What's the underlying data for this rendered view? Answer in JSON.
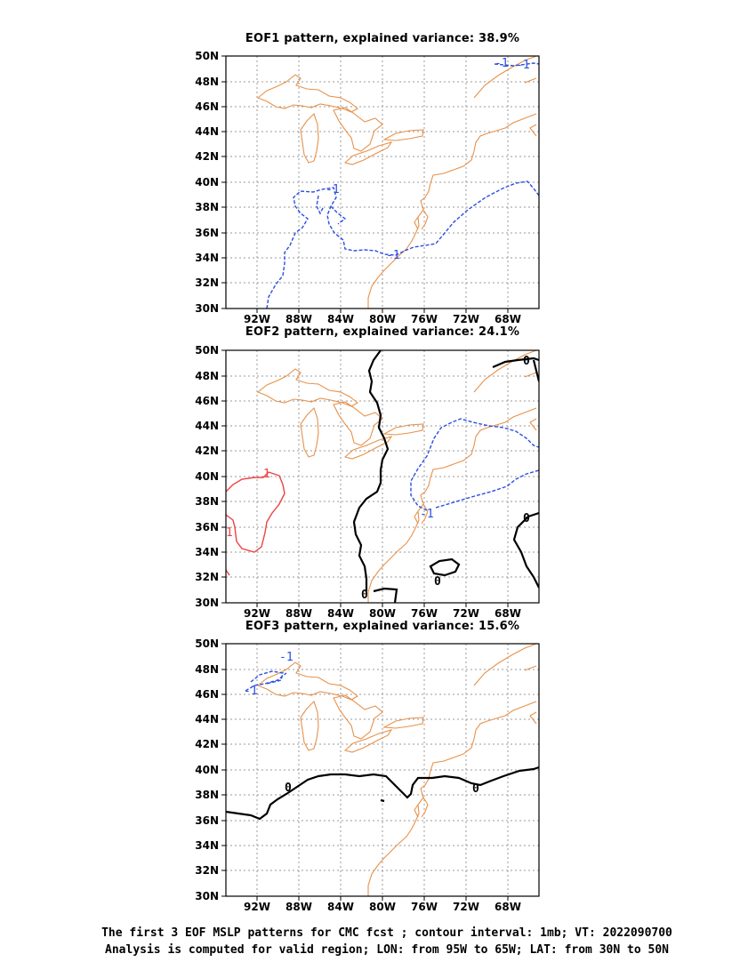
{
  "panels": [
    {
      "title": "EOF1 pattern, explained variance: 38.9%"
    },
    {
      "title": "EOF2 pattern, explained variance: 24.1%"
    },
    {
      "title": "EOF3 pattern, explained variance: 15.6%"
    }
  ],
  "lat_labels": [
    "50N",
    "48N",
    "46N",
    "44N",
    "42N",
    "40N",
    "38N",
    "36N",
    "34N",
    "32N",
    "30N"
  ],
  "lon_labels": [
    "92W",
    "88W",
    "84W",
    "80W",
    "76W",
    "72W",
    "68W"
  ],
  "contour_labels": {
    "neg": "-1",
    "pos": "1",
    "zero": "0"
  },
  "colors": {
    "coast": "#e8914a",
    "negative": "#2b4fe0",
    "positive": "#f04040",
    "zero": "#000000",
    "grid": "#9a9a9a"
  },
  "caption": {
    "line1": "The first 3 EOF MSLP patterns for CMC fcst ; contour interval: 1mb; VT: 2022090700",
    "line2": "Analysis is computed for valid region; LON: from 95W to 65W; LAT: from 30N to 50N"
  }
}
